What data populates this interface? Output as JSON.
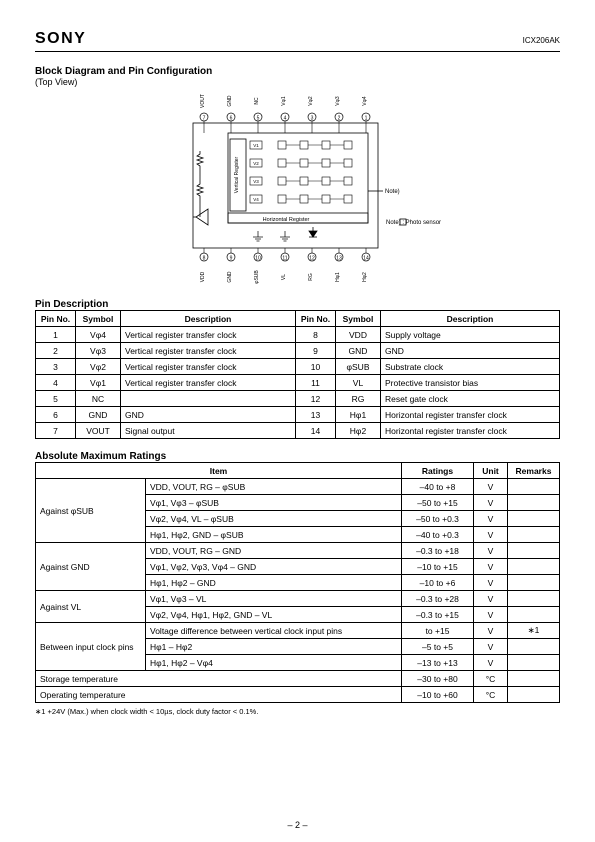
{
  "header": {
    "brand": "SONY",
    "part": "ICX206AK"
  },
  "section1": {
    "title": "Block Diagram and Pin Configuration",
    "subtitle": "(Top View)"
  },
  "diagram": {
    "topPins": [
      {
        "n": "7",
        "lbl": "VOUT"
      },
      {
        "n": "6",
        "lbl": "GND"
      },
      {
        "n": "5",
        "lbl": "NC"
      },
      {
        "n": "4",
        "lbl": "Vφ1"
      },
      {
        "n": "3",
        "lbl": "Vφ2"
      },
      {
        "n": "2",
        "lbl": "Vφ3"
      },
      {
        "n": "1",
        "lbl": "Vφ4"
      }
    ],
    "botPins": [
      {
        "n": "8",
        "lbl": "VDD"
      },
      {
        "n": "9",
        "lbl": "GND"
      },
      {
        "n": "10",
        "lbl": "φSUB"
      },
      {
        "n": "11",
        "lbl": "VL"
      },
      {
        "n": "12",
        "lbl": "RG"
      },
      {
        "n": "13",
        "lbl": "Hφ1"
      },
      {
        "n": "14",
        "lbl": "Hφ2"
      }
    ],
    "vregLabels": [
      "V1",
      "V2",
      "V3",
      "V4"
    ],
    "hregLabel": "Horizontal Register",
    "vregTitle": "Vertical Register",
    "noteArrow": "Note)",
    "photoNote": "Note)       : Photo sensor"
  },
  "pinDesc": {
    "title": "Pin Description",
    "cols": [
      "Pin No.",
      "Symbol",
      "Description",
      "Pin No.",
      "Symbol",
      "Description"
    ],
    "rows": [
      [
        "1",
        "Vφ4",
        "Vertical register transfer clock",
        "8",
        "VDD",
        "Supply voltage"
      ],
      [
        "2",
        "Vφ3",
        "Vertical register transfer clock",
        "9",
        "GND",
        "GND"
      ],
      [
        "3",
        "Vφ2",
        "Vertical register transfer clock",
        "10",
        "φSUB",
        "Substrate clock"
      ],
      [
        "4",
        "Vφ1",
        "Vertical register transfer clock",
        "11",
        "VL",
        "Protective transistor bias"
      ],
      [
        "5",
        "NC",
        "",
        "12",
        "RG",
        "Reset gate clock"
      ],
      [
        "6",
        "GND",
        "GND",
        "13",
        "Hφ1",
        "Horizontal register transfer clock"
      ],
      [
        "7",
        "VOUT",
        "Signal output",
        "14",
        "Hφ2",
        "Horizontal register transfer clock"
      ]
    ]
  },
  "ratings": {
    "title": "Absolute Maximum Ratings",
    "cols": [
      "Item",
      "Ratings",
      "Unit",
      "Remarks"
    ],
    "groups": [
      {
        "span": 4,
        "label": "Against φSUB",
        "rows": [
          [
            "VDD, VOUT, RG – φSUB",
            "–40 to +8",
            "V",
            ""
          ],
          [
            "Vφ1, Vφ3 – φSUB",
            "–50 to +15",
            "V",
            ""
          ],
          [
            "Vφ2, Vφ4, VL – φSUB",
            "–50 to +0.3",
            "V",
            ""
          ],
          [
            "Hφ1, Hφ2, GND – φSUB",
            "–40 to +0.3",
            "V",
            ""
          ]
        ]
      },
      {
        "span": 3,
        "label": "Against GND",
        "rows": [
          [
            "VDD, VOUT, RG – GND",
            "–0.3 to +18",
            "V",
            ""
          ],
          [
            "Vφ1, Vφ2, Vφ3, Vφ4 – GND",
            "–10 to +15",
            "V",
            ""
          ],
          [
            "Hφ1, Hφ2 – GND",
            "–10 to +6",
            "V",
            ""
          ]
        ]
      },
      {
        "span": 2,
        "label": "Against VL",
        "rows": [
          [
            "Vφ1, Vφ3 – VL",
            "–0.3 to +28",
            "V",
            ""
          ],
          [
            "Vφ2, Vφ4, Hφ1, Hφ2, GND – VL",
            "–0.3 to +15",
            "V",
            ""
          ]
        ]
      },
      {
        "span": 3,
        "label": "Between input clock pins",
        "rows": [
          [
            "Voltage difference between vertical clock input pins",
            "to +15",
            "V",
            "∗1"
          ],
          [
            "Hφ1 – Hφ2",
            "–5 to +5",
            "V",
            ""
          ],
          [
            "Hφ1, Hφ2 – Vφ4",
            "–13 to +13",
            "V",
            ""
          ]
        ]
      }
    ],
    "singles": [
      [
        "Storage temperature",
        "–30 to +80",
        "°C",
        ""
      ],
      [
        "Operating temperature",
        "–10 to +60",
        "°C",
        ""
      ]
    ],
    "footnote": "∗1  +24V (Max.) when clock width < 10µs, clock duty factor < 0.1%."
  },
  "pagenum": "– 2 –",
  "colors": {
    "line": "#000000",
    "bg": "#ffffff"
  }
}
